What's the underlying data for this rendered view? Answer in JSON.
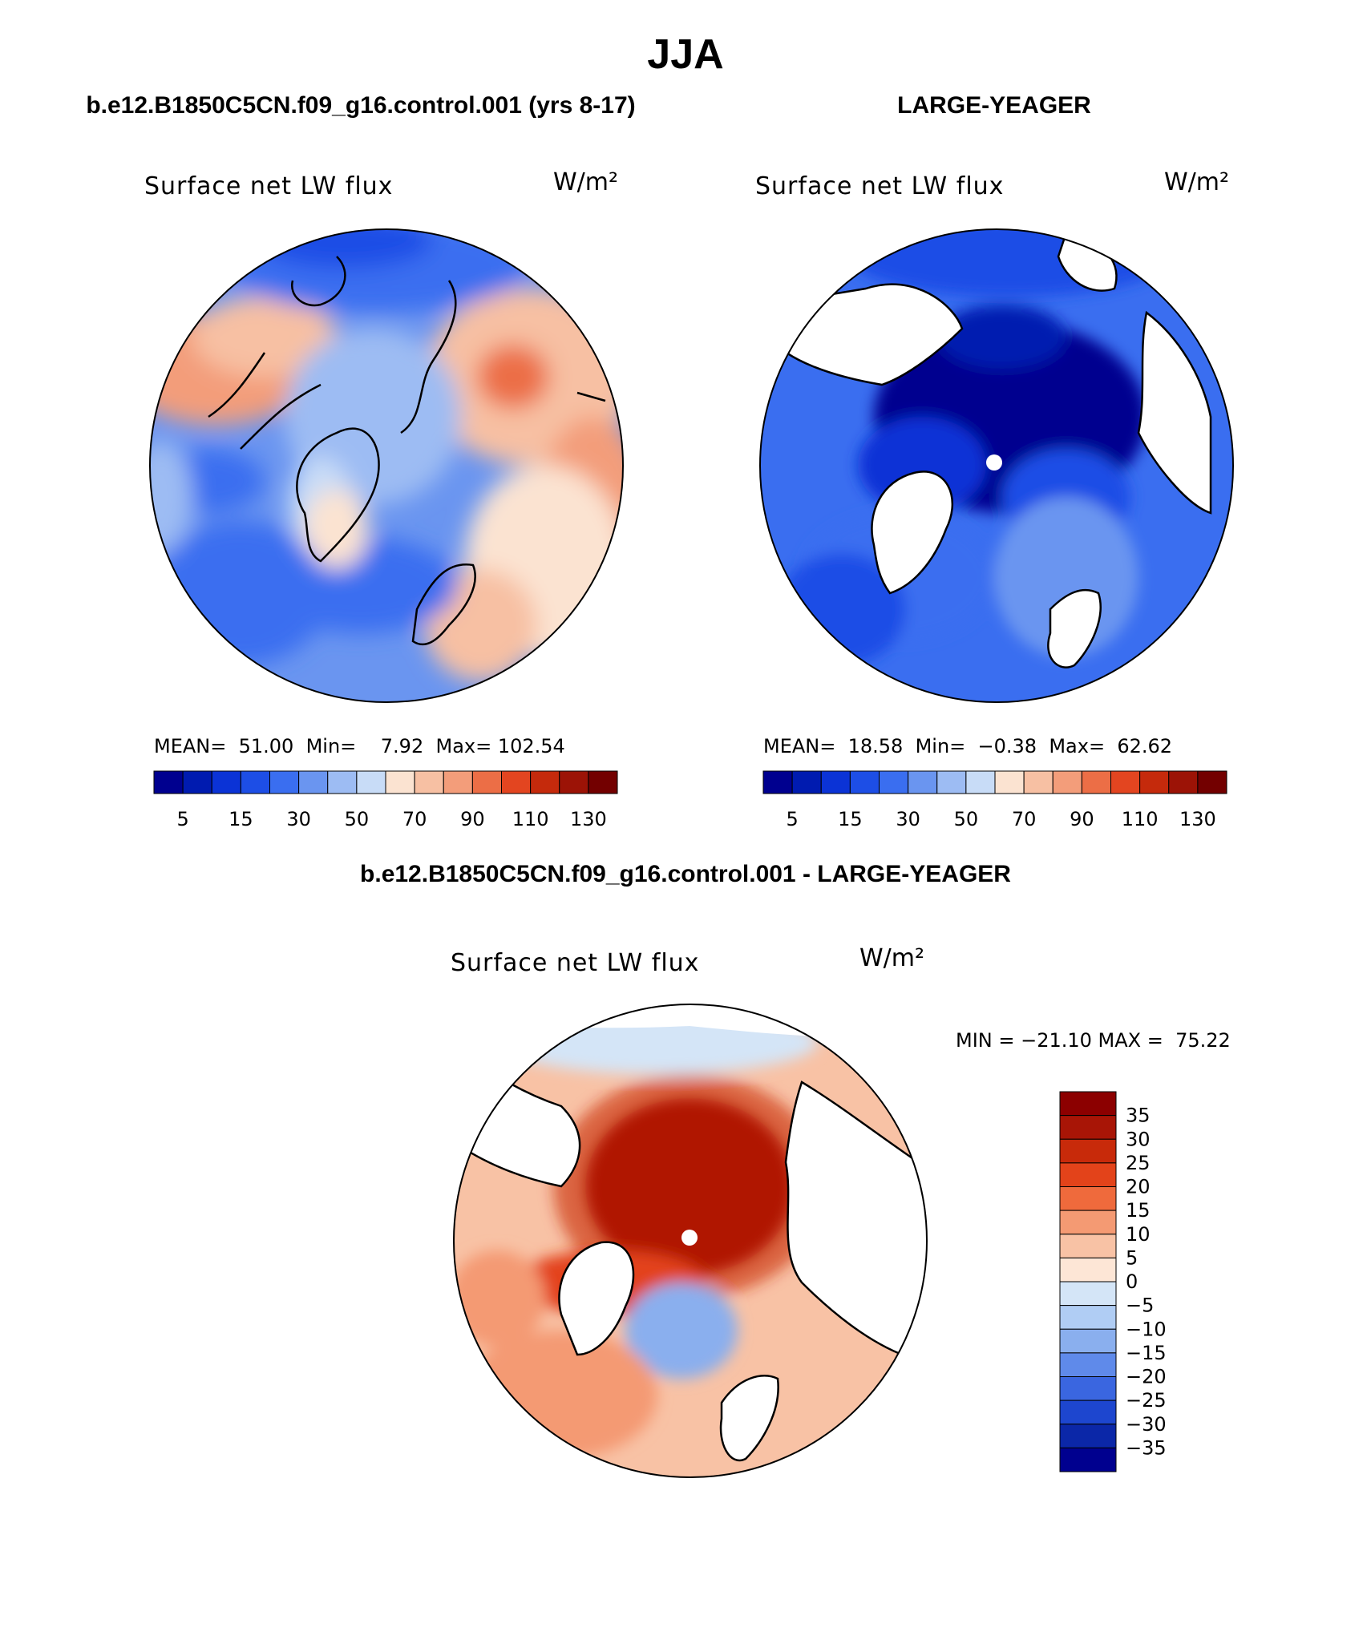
{
  "page": {
    "title": "JJA",
    "top_left_title": "b.e12.B1850C5CN.f09_g16.control.001 (yrs 8-17)",
    "top_right_title": "LARGE-YEAGER",
    "diff_title": "b.e12.B1850C5CN.f09_g16.control.001 - LARGE-YEAGER"
  },
  "chart_data": [
    {
      "type": "heatmap",
      "projection": "north-polar-stereographic",
      "title": "Surface net LW flux",
      "units": "W/m²",
      "stats": {
        "mean": "51.00",
        "min": "7.92",
        "max": "102.54"
      },
      "stats_text": "MEAN=  51.00  Min=    7.92  Max= 102.54",
      "colorbar": {
        "orientation": "horizontal",
        "levels": [
          5,
          10,
          15,
          20,
          30,
          40,
          50,
          60,
          70,
          80,
          90,
          100,
          110,
          120,
          130
        ],
        "tick_labels": [
          "5",
          "15",
          "30",
          "50",
          "70",
          "90",
          "110",
          "130"
        ],
        "colors": [
          "#00008f",
          "#001bb0",
          "#0b33d6",
          "#1d4ee6",
          "#3a6ef0",
          "#6a95f0",
          "#9dbcf3",
          "#c8dcf7",
          "#fbe3d1",
          "#f7c0a3",
          "#f39d7a",
          "#ec6e46",
          "#e34520",
          "#c52a0c",
          "#9c1306",
          "#730000"
        ]
      },
      "pattern": "bluish interior and North Atlantic, warm (70-100) over Siberia, Alaska and Europe"
    },
    {
      "type": "heatmap",
      "projection": "north-polar-stereographic",
      "title": "Surface net LW flux",
      "units": "W/m²",
      "stats": {
        "mean": "18.58",
        "min": "−0.38",
        "max": "62.62"
      },
      "stats_text": "MEAN=  18.58  Min=  −0.38  Max=  62.62",
      "colorbar": {
        "orientation": "horizontal",
        "levels": [
          5,
          10,
          15,
          20,
          30,
          40,
          50,
          60,
          70,
          80,
          90,
          100,
          110,
          120,
          130
        ],
        "tick_labels": [
          "5",
          "15",
          "30",
          "50",
          "70",
          "90",
          "110",
          "130"
        ],
        "colors": [
          "#00008f",
          "#001bb0",
          "#0b33d6",
          "#1d4ee6",
          "#3a6ef0",
          "#6a95f0",
          "#9dbcf3",
          "#c8dcf7",
          "#fbe3d1",
          "#f7c0a3",
          "#f39d7a",
          "#ec6e46",
          "#e34520",
          "#c52a0c",
          "#9c1306",
          "#730000"
        ]
      },
      "pattern": "ocean only; dark blue (<5) over central Arctic, blue (15-40) elsewhere; land masked white"
    },
    {
      "type": "heatmap",
      "projection": "north-polar-stereographic",
      "title": "Surface net LW flux",
      "units": "W/m²",
      "range_text": "MIN = −21.10 MAX =  75.22",
      "stats": {
        "min": "−21.10",
        "max": "75.22"
      },
      "colorbar": {
        "orientation": "vertical",
        "tick_labels": [
          "35",
          "30",
          "25",
          "20",
          "15",
          "10",
          "5",
          "0",
          "−5",
          "−10",
          "−15",
          "−20",
          "−25",
          "−30",
          "−35"
        ],
        "colors": [
          "#8c0000",
          "#a81506",
          "#c82a0a",
          "#e3431a",
          "#ef6a3c",
          "#f49a73",
          "#f8c2a5",
          "#fde6d6",
          "#d4e5f7",
          "#b0cdf4",
          "#8aafee",
          "#5f8aea",
          "#3a66e0",
          "#1d46cf",
          "#0b27a8",
          "#00008f"
        ]
      },
      "pattern": "large positive (>35) over central Arctic, positive 5-25 over Nordic/Atlantic seas, slightly negative near Scandinavia and Bering"
    }
  ]
}
